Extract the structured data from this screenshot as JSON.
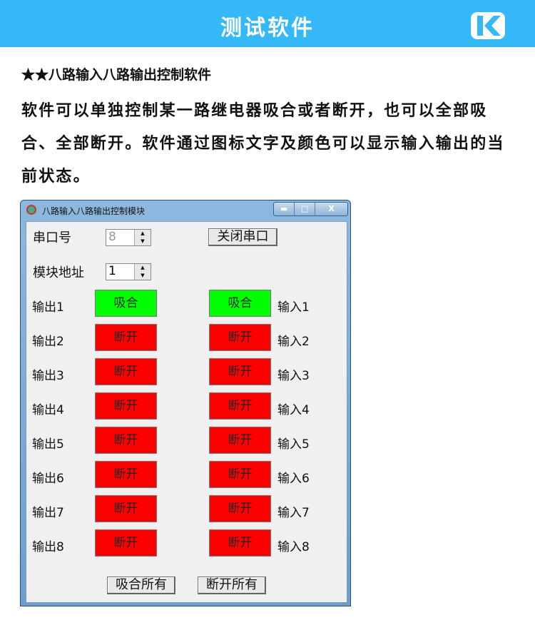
{
  "header": {
    "title": "测试软件",
    "logo": "K"
  },
  "heading": "★★八路输入八路输出控制软件",
  "paragraph": "软件可以单独控制某一路继电器吸合或者断开，也可以全部吸合、全部断开。软件通过图标文字及颜色可以显示输入输出的当前状态。",
  "window": {
    "title": "八路输入八路输出控制模块",
    "min": "▬",
    "max": "□",
    "close": "X",
    "port_label": "串口号",
    "port_value": "8",
    "close_port": "关闭串口",
    "addr_label": "模块地址",
    "addr_value": "1",
    "outputs": [
      {
        "label": "输出1",
        "state": "吸合"
      },
      {
        "label": "输出2",
        "state": "断开"
      },
      {
        "label": "输出3",
        "state": "断开"
      },
      {
        "label": "输出4",
        "state": "断开"
      },
      {
        "label": "输出5",
        "state": "断开"
      },
      {
        "label": "输出6",
        "state": "断开"
      },
      {
        "label": "输出7",
        "state": "断开"
      },
      {
        "label": "输出8",
        "state": "断开"
      }
    ],
    "inputs": [
      {
        "label": "输入1",
        "state": "吸合"
      },
      {
        "label": "输入2",
        "state": "断开"
      },
      {
        "label": "输入3",
        "state": "断开"
      },
      {
        "label": "输入4",
        "state": "断开"
      },
      {
        "label": "输入5",
        "state": "断开"
      },
      {
        "label": "输入6",
        "state": "断开"
      },
      {
        "label": "输入7",
        "state": "断开"
      },
      {
        "label": "输入8",
        "state": "断开"
      }
    ],
    "all_on": "吸合所有",
    "all_off": "断开所有"
  },
  "colors": {
    "header": "#35b8f7",
    "on": "#00ff00",
    "off": "#ff0000"
  }
}
